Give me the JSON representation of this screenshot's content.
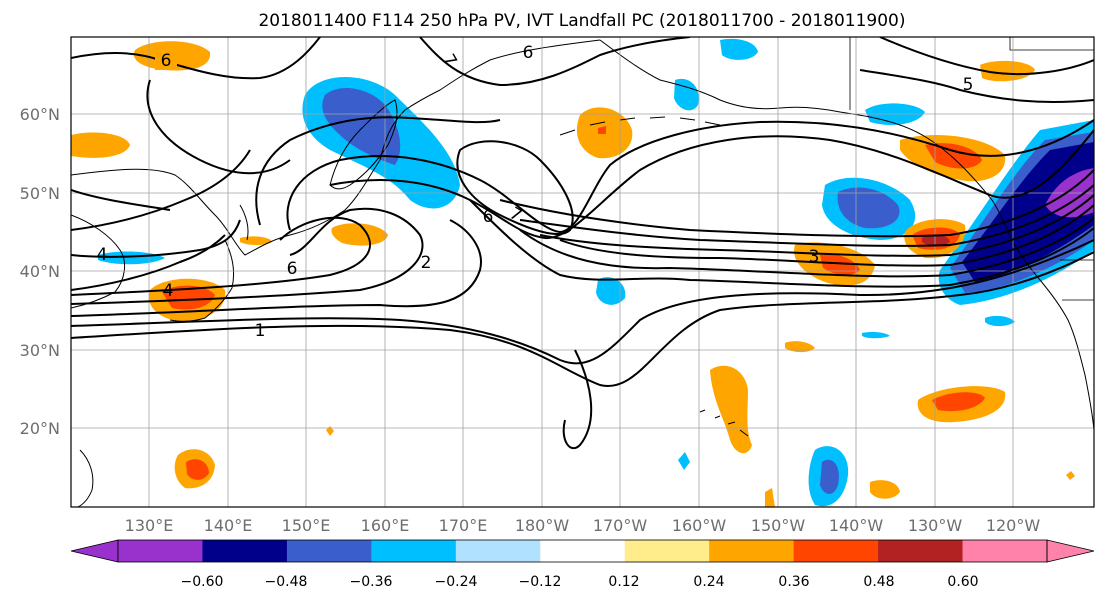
{
  "title": "2018011400 F114 250 hPa PV, IVT Landfall PC (2018011700 - 2018011900)",
  "map": {
    "lat_labels": [
      "60°N",
      "50°N",
      "40°N",
      "30°N",
      "20°N"
    ],
    "lon_labels": [
      "130°E",
      "140°E",
      "150°E",
      "160°E",
      "170°E",
      "180°W",
      "170°W",
      "160°W",
      "150°W",
      "140°W",
      "130°W",
      "120°W"
    ],
    "contour_labels": [
      "6",
      "7",
      "6",
      "5",
      "6",
      "7",
      "4",
      "6",
      "2",
      "4",
      "3",
      "1"
    ],
    "grid": true,
    "projection": "equirectangular, approx. 120°E–115°W, 10°N–70°N"
  },
  "colorbar": {
    "colors": [
      "#9932cc",
      "#00008b",
      "#3a5fcd",
      "#00bfff",
      "#b0e2ff",
      "#ffffff",
      "#ffec8b",
      "#ffa500",
      "#ff4500",
      "#b22222",
      "#ff82ab"
    ],
    "tick_labels": [
      "−0.60",
      "−0.48",
      "−0.36",
      "−0.24",
      "−0.12",
      "0.12",
      "0.24",
      "0.36",
      "0.48",
      "0.60"
    ],
    "extend": "both"
  }
}
